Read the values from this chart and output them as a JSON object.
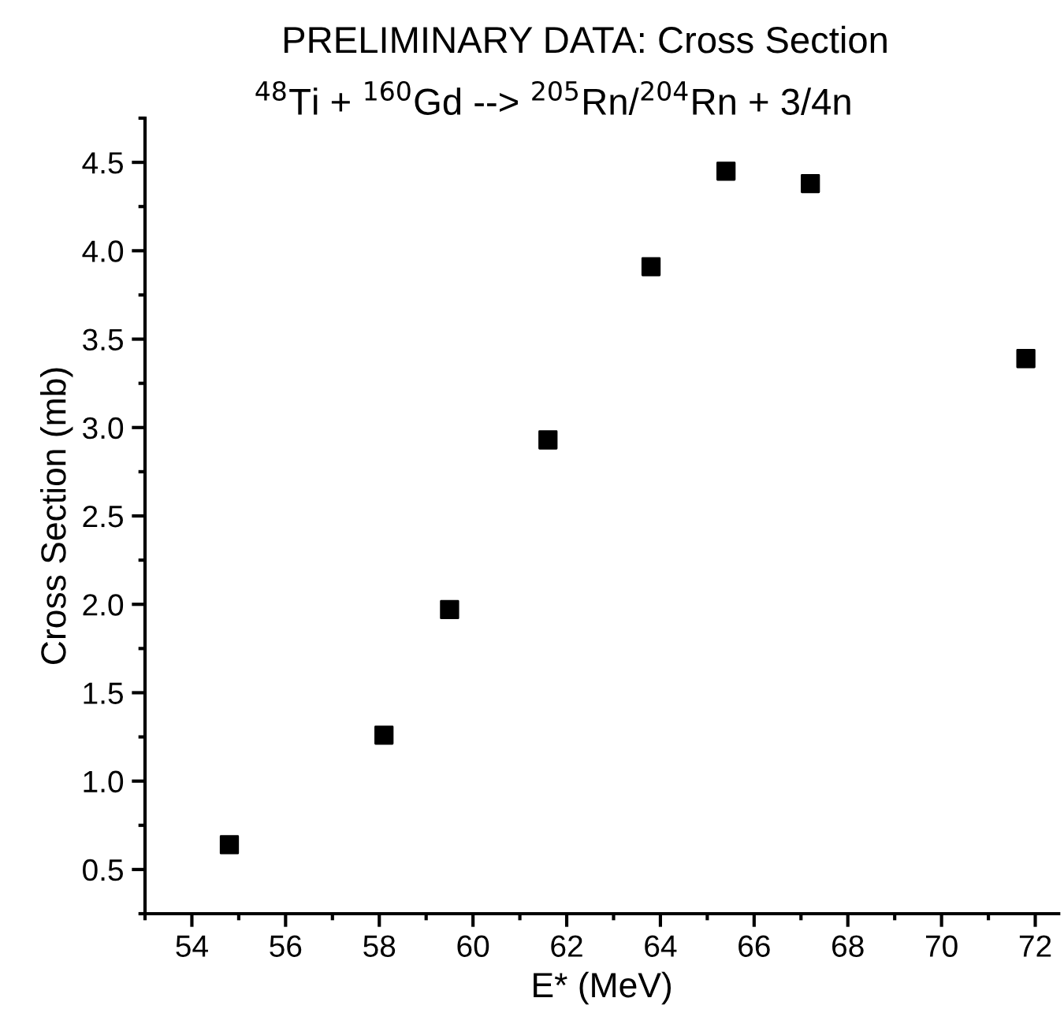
{
  "chart_data": {
    "type": "scatter",
    "title": "PRELIMINARY DATA: Cross Section",
    "subtitle": "$^{48}$Ti + $^{160}$Gd --> $^{205}$Rn/$^{204}$Rn + 3/4n",
    "xlabel": "E* (MeV)",
    "ylabel": "Cross Section (mb)",
    "x": [
      54.8,
      58.1,
      59.5,
      61.6,
      63.8,
      65.4,
      67.2,
      71.8
    ],
    "series": [
      {
        "color": "#000000",
        "values": [
          0.64,
          1.26,
          1.97,
          2.93,
          3.91,
          4.45,
          4.38,
          3.39
        ]
      }
    ],
    "marker": "square",
    "xlim": [
      53,
      72.5
    ],
    "ylim": [
      0.25,
      4.75
    ],
    "xticks": [
      54,
      56,
      58,
      60,
      62,
      64,
      66,
      68,
      70,
      72
    ],
    "yticks": [
      {
        "value": 0.5,
        "label": "0.5"
      },
      {
        "value": 1.0,
        "label": "1.0"
      },
      {
        "value": 1.5,
        "label": "1.5"
      },
      {
        "value": 2.0,
        "label": "2.0"
      },
      {
        "value": 2.5,
        "label": "2.5"
      },
      {
        "value": 3.0,
        "label": "3.0"
      },
      {
        "value": 3.5,
        "label": "3.5"
      },
      {
        "value": 4.0,
        "label": "4.0"
      },
      {
        "value": 4.5,
        "label": "4.5"
      }
    ],
    "grid": false,
    "legend": false
  }
}
